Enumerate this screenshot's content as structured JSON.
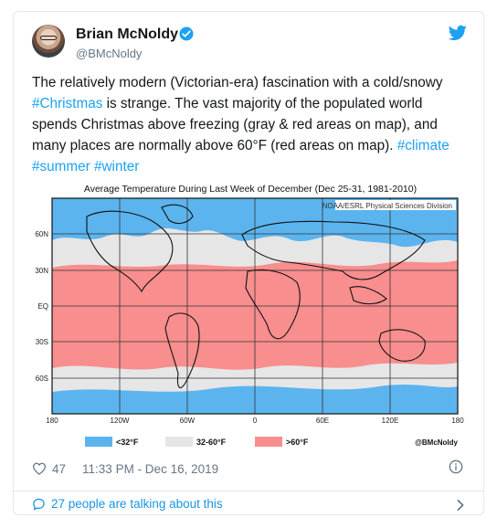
{
  "author": {
    "name": "Brian McNoldy",
    "handle": "@BMcNoldy",
    "verified_icon": "verified-badge-icon",
    "logo_icon": "twitter-bird-icon"
  },
  "tweet": {
    "text_segments": [
      {
        "text": "The relatively modern (Victorian-era) fascination with a cold/snowy ",
        "type": "text"
      },
      {
        "text": "#Christmas",
        "type": "hashtag"
      },
      {
        "text": " is strange. The vast majority of the populated world spends Christmas above freezing (gray & red areas on map), and many places are normally above 60°F (red areas on map). ",
        "type": "text"
      },
      {
        "text": "#climate",
        "type": "hashtag"
      },
      {
        "text": " ",
        "type": "text"
      },
      {
        "text": "#summer",
        "type": "hashtag"
      },
      {
        "text": " ",
        "type": "text"
      },
      {
        "text": "#winter",
        "type": "hashtag"
      }
    ]
  },
  "map": {
    "title": "Average Temperature During Last Week of December (Dec 25-31, 1981-2010)",
    "credit": "NOAA/ESRL Physical Sciences Division",
    "lat_labels": [
      "60N",
      "30N",
      "EQ",
      "30S",
      "60S"
    ],
    "lon_labels": [
      "180",
      "120W",
      "60W",
      "0",
      "60E",
      "120E",
      "180"
    ],
    "legend": [
      {
        "label": "<32°F",
        "color": "#5bb4ee"
      },
      {
        "label": "32-60°F",
        "color": "#e6e6e6"
      },
      {
        "label": ">60°F",
        "color": "#f88e8e"
      }
    ],
    "watermark": "@BMcNoldy"
  },
  "meta": {
    "likes": "47",
    "timestamp": "11:33 PM - Dec 16, 2019",
    "heart_icon": "heart-icon",
    "info_icon": "info-icon"
  },
  "footer": {
    "talking": "27 people are talking about this",
    "chevron_icon": "chevron-right-icon"
  },
  "colors": {
    "accent": "#1da1f2",
    "cold": "#5bb4ee",
    "mild": "#e6e6e6",
    "warm": "#f88e8e"
  }
}
